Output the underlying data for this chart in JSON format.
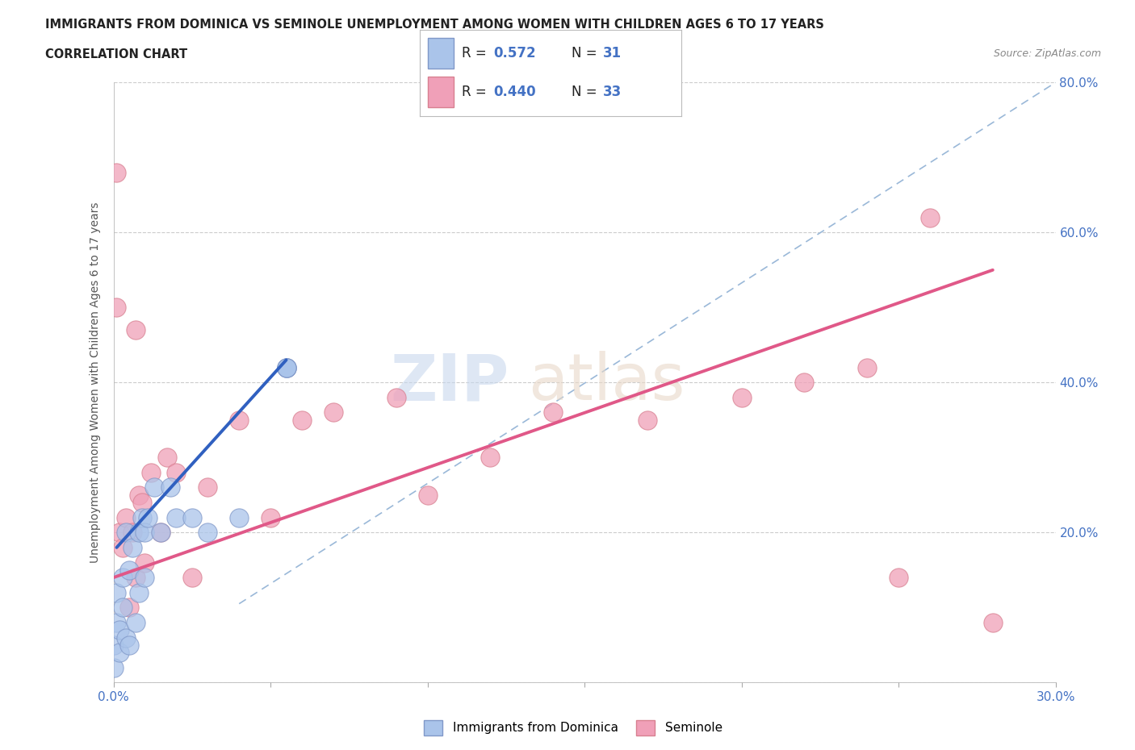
{
  "title": "IMMIGRANTS FROM DOMINICA VS SEMINOLE UNEMPLOYMENT AMONG WOMEN WITH CHILDREN AGES 6 TO 17 YEARS",
  "subtitle": "CORRELATION CHART",
  "source": "Source: ZipAtlas.com",
  "ylabel": "Unemployment Among Women with Children Ages 6 to 17 years",
  "legend_label1": "Immigrants from Dominica",
  "legend_label2": "Seminole",
  "legend_R1": "0.572",
  "legend_N1": "31",
  "legend_R2": "0.440",
  "legend_N2": "33",
  "xlim": [
    0.0,
    0.3
  ],
  "ylim": [
    0.0,
    0.8
  ],
  "xticks": [
    0.0,
    0.05,
    0.1,
    0.15,
    0.2,
    0.25,
    0.3
  ],
  "yticks": [
    0.0,
    0.2,
    0.4,
    0.6,
    0.8
  ],
  "color_blue": "#aac4ea",
  "color_pink": "#f0a0b8",
  "color_blue_line": "#3060c0",
  "color_pink_line": "#e05888",
  "color_dashed": "#9ab8d8",
  "blue_scatter_x": [
    0.0,
    0.0,
    0.001,
    0.001,
    0.002,
    0.002,
    0.003,
    0.003,
    0.004,
    0.004,
    0.005,
    0.005,
    0.006,
    0.007,
    0.008,
    0.008,
    0.009,
    0.01,
    0.01,
    0.011,
    0.013,
    0.015,
    0.018,
    0.02,
    0.025,
    0.03,
    0.04,
    0.055,
    0.055,
    0.055,
    0.055
  ],
  "blue_scatter_y": [
    0.02,
    0.05,
    0.08,
    0.12,
    0.04,
    0.07,
    0.1,
    0.14,
    0.06,
    0.2,
    0.05,
    0.15,
    0.18,
    0.08,
    0.12,
    0.2,
    0.22,
    0.2,
    0.14,
    0.22,
    0.26,
    0.2,
    0.26,
    0.22,
    0.22,
    0.2,
    0.22,
    0.42,
    0.42,
    0.42,
    0.42
  ],
  "pink_scatter_x": [
    0.001,
    0.002,
    0.003,
    0.004,
    0.005,
    0.006,
    0.007,
    0.008,
    0.009,
    0.01,
    0.012,
    0.015,
    0.017,
    0.02,
    0.025,
    0.03,
    0.04,
    0.05,
    0.06,
    0.07,
    0.09,
    0.1,
    0.12,
    0.14,
    0.17,
    0.2,
    0.22,
    0.24,
    0.26,
    0.001,
    0.007,
    0.25,
    0.28
  ],
  "pink_scatter_y": [
    0.68,
    0.2,
    0.18,
    0.22,
    0.1,
    0.2,
    0.14,
    0.25,
    0.24,
    0.16,
    0.28,
    0.2,
    0.3,
    0.28,
    0.14,
    0.26,
    0.35,
    0.22,
    0.35,
    0.36,
    0.38,
    0.25,
    0.3,
    0.36,
    0.35,
    0.38,
    0.4,
    0.42,
    0.62,
    0.5,
    0.47,
    0.14,
    0.08
  ],
  "blue_line_x": [
    0.001,
    0.055
  ],
  "blue_line_y": [
    0.18,
    0.43
  ],
  "pink_line_x": [
    0.0,
    0.28
  ],
  "pink_line_y": [
    0.14,
    0.55
  ],
  "diag_line_x": [
    0.04,
    0.3
  ],
  "diag_line_y": [
    0.105,
    0.8
  ]
}
